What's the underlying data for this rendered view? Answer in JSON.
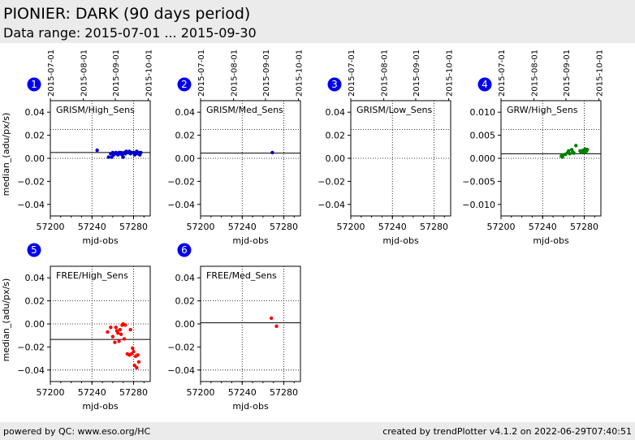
{
  "header": {
    "title": "PIONIER: DARK (90 days period)",
    "subtitle": "Data range: 2015-07-01 ... 2015-09-30"
  },
  "footer": {
    "left": "powered by QC: www.eso.org/HC",
    "right": "created by trendPlotter v4.1.2 on 2022-06-29T07:40:51"
  },
  "chart_data": [
    {
      "type": "scatter",
      "index": "1",
      "label": "GRISM/High_Sens",
      "xlabel": "mjd-obs",
      "ylabel": "median_(adu/px/s)",
      "xlim": [
        57200,
        57296
      ],
      "ylim": [
        -0.05,
        0.05
      ],
      "xticks": [
        "57200",
        "57240",
        "57280"
      ],
      "yticks": [
        "0.04",
        "0.02",
        "0.00",
        "−0.02",
        "−0.04"
      ],
      "top_ticks": [
        "2015-07-01",
        "2015-08-01",
        "2015-09-01",
        "2015-10-01"
      ],
      "color": "#0000cc",
      "ref_line": 0.005,
      "dotted_levels": [
        0.025,
        0.0
      ],
      "points": [
        [
          57245,
          0.007
        ],
        [
          57256,
          0.001
        ],
        [
          57258,
          0.004
        ],
        [
          57259,
          0.001
        ],
        [
          57260,
          0.005
        ],
        [
          57261,
          0.003
        ],
        [
          57262,
          0.004
        ],
        [
          57263,
          0.005
        ],
        [
          57264,
          0.004
        ],
        [
          57265,
          0.003
        ],
        [
          57266,
          0.005
        ],
        [
          57267,
          0.004
        ],
        [
          57268,
          0.005
        ],
        [
          57269,
          0.003
        ],
        [
          57270,
          0.001
        ],
        [
          57271,
          0.005
        ],
        [
          57272,
          0.004
        ],
        [
          57273,
          0.006
        ],
        [
          57274,
          0.005
        ],
        [
          57275,
          0.005
        ],
        [
          57276,
          0.006
        ],
        [
          57277,
          0.004
        ],
        [
          57278,
          0.005
        ],
        [
          57280,
          0.005
        ],
        [
          57281,
          0.003
        ],
        [
          57282,
          0.004
        ],
        [
          57283,
          0.006
        ],
        [
          57284,
          0.004
        ],
        [
          57285,
          0.005
        ],
        [
          57286,
          0.003
        ],
        [
          57287,
          0.005
        ]
      ]
    },
    {
      "type": "scatter",
      "index": "2",
      "label": "GRISM/Med_Sens",
      "xlabel": "mjd-obs",
      "ylabel": "",
      "xlim": [
        57200,
        57296
      ],
      "ylim": [
        -0.05,
        0.05
      ],
      "xticks": [
        "57200",
        "57240",
        "57280"
      ],
      "yticks": [
        "0.04",
        "0.02",
        "0.00",
        "−0.02",
        "−0.04"
      ],
      "top_ticks": [
        "2015-07-01",
        "2015-08-01",
        "2015-09-01",
        "2015-10-01"
      ],
      "color": "#0000cc",
      "ref_line": 0.0045,
      "dotted_levels": [
        0.025,
        0.0
      ],
      "points": [
        [
          57269,
          0.005
        ]
      ]
    },
    {
      "type": "scatter",
      "index": "3",
      "label": "GRISM/Low_Sens",
      "xlabel": "mjd-obs",
      "ylabel": "",
      "xlim": [
        57200,
        57296
      ],
      "ylim": [
        -0.05,
        0.05
      ],
      "xticks": [
        "57200",
        "57240",
        "57280"
      ],
      "yticks": [
        "0.04",
        "0.02",
        "0.00",
        "−0.02",
        "−0.04"
      ],
      "top_ticks": [
        "2015-07-01",
        "2015-08-01",
        "2015-09-01",
        "2015-10-01"
      ],
      "color": "#0000cc",
      "ref_line": null,
      "dotted_levels": [
        0.025,
        0.0
      ],
      "points": []
    },
    {
      "type": "scatter",
      "index": "4",
      "label": "GRW/High_Sens",
      "xlabel": "mjd-obs",
      "ylabel": "",
      "xlim": [
        57200,
        57296
      ],
      "ylim": [
        -0.01,
        0.01
      ],
      "xticks": [
        "57200",
        "57240",
        "57280"
      ],
      "yticks": [
        "0.010",
        "0.005",
        "0.000",
        "−0.005",
        "−0.010"
      ],
      "top_ticks": [
        "2015-07-01",
        "2015-08-01",
        "2015-09-01",
        "2015-10-01"
      ],
      "color": "#008000",
      "ref_line": 0.0008,
      "dotted_levels": [
        0.005,
        0.0
      ],
      "points": [
        [
          57258,
          0.0004
        ],
        [
          57259,
          0.0002
        ],
        [
          57260,
          0.0006
        ],
        [
          57262,
          0.0007
        ],
        [
          57264,
          0.001
        ],
        [
          57265,
          0.0013
        ],
        [
          57266,
          0.0008
        ],
        [
          57268,
          0.0015
        ],
        [
          57269,
          0.0011
        ],
        [
          57270,
          0.0009
        ],
        [
          57272,
          0.0022
        ],
        [
          57276,
          0.0013
        ],
        [
          57277,
          0.001
        ],
        [
          57278,
          0.0012
        ],
        [
          57279,
          0.0014
        ],
        [
          57280,
          0.001
        ],
        [
          57281,
          0.0016
        ],
        [
          57282,
          0.0012
        ],
        [
          57283,
          0.0015
        ]
      ]
    },
    {
      "type": "scatter",
      "index": "5",
      "label": "FREE/High_Sens",
      "xlabel": "mjd-obs",
      "ylabel": "median_(adu/px/s)",
      "xlim": [
        57200,
        57296
      ],
      "ylim": [
        -0.05,
        0.05
      ],
      "xticks": [
        "57200",
        "57240",
        "57280"
      ],
      "yticks": [
        "0.04",
        "0.02",
        "0.00",
        "−0.02",
        "−0.04"
      ],
      "top_ticks": [],
      "color": "#ff0000",
      "ref_line": -0.0135,
      "dotted_levels": [
        0.02,
        0.0,
        -0.04
      ],
      "points": [
        [
          57255,
          -0.007
        ],
        [
          57258,
          -0.003
        ],
        [
          57260,
          -0.011
        ],
        [
          57262,
          -0.016
        ],
        [
          57263,
          -0.003
        ],
        [
          57264,
          -0.006
        ],
        [
          57265,
          -0.008
        ],
        [
          57266,
          -0.015
        ],
        [
          57267,
          -0.005
        ],
        [
          57268,
          -0.009
        ],
        [
          57269,
          -0.001
        ],
        [
          57270,
          0.0
        ],
        [
          57271,
          -0.013
        ],
        [
          57272,
          -0.001
        ],
        [
          57274,
          -0.026
        ],
        [
          57276,
          -0.027
        ],
        [
          57277,
          -0.005
        ],
        [
          57278,
          -0.026
        ],
        [
          57279,
          -0.021
        ],
        [
          57280,
          -0.024
        ],
        [
          57281,
          -0.036
        ],
        [
          57282,
          -0.028
        ],
        [
          57283,
          -0.038
        ],
        [
          57284,
          -0.027
        ],
        [
          57285,
          -0.033
        ]
      ]
    },
    {
      "type": "scatter",
      "index": "6",
      "label": "FREE/Med_Sens",
      "xlabel": "mjd-obs",
      "ylabel": "",
      "xlim": [
        57200,
        57296
      ],
      "ylim": [
        -0.05,
        0.05
      ],
      "xticks": [
        "57200",
        "57240",
        "57280"
      ],
      "yticks": [
        "0.04",
        "0.02",
        "0.00",
        "−0.02",
        "−0.04"
      ],
      "top_ticks": [],
      "color": "#ff0000",
      "ref_line": 0.001,
      "dotted_levels": [
        0.02,
        -0.04
      ],
      "points": [
        [
          57268,
          0.005
        ],
        [
          57273,
          -0.002
        ]
      ]
    }
  ]
}
